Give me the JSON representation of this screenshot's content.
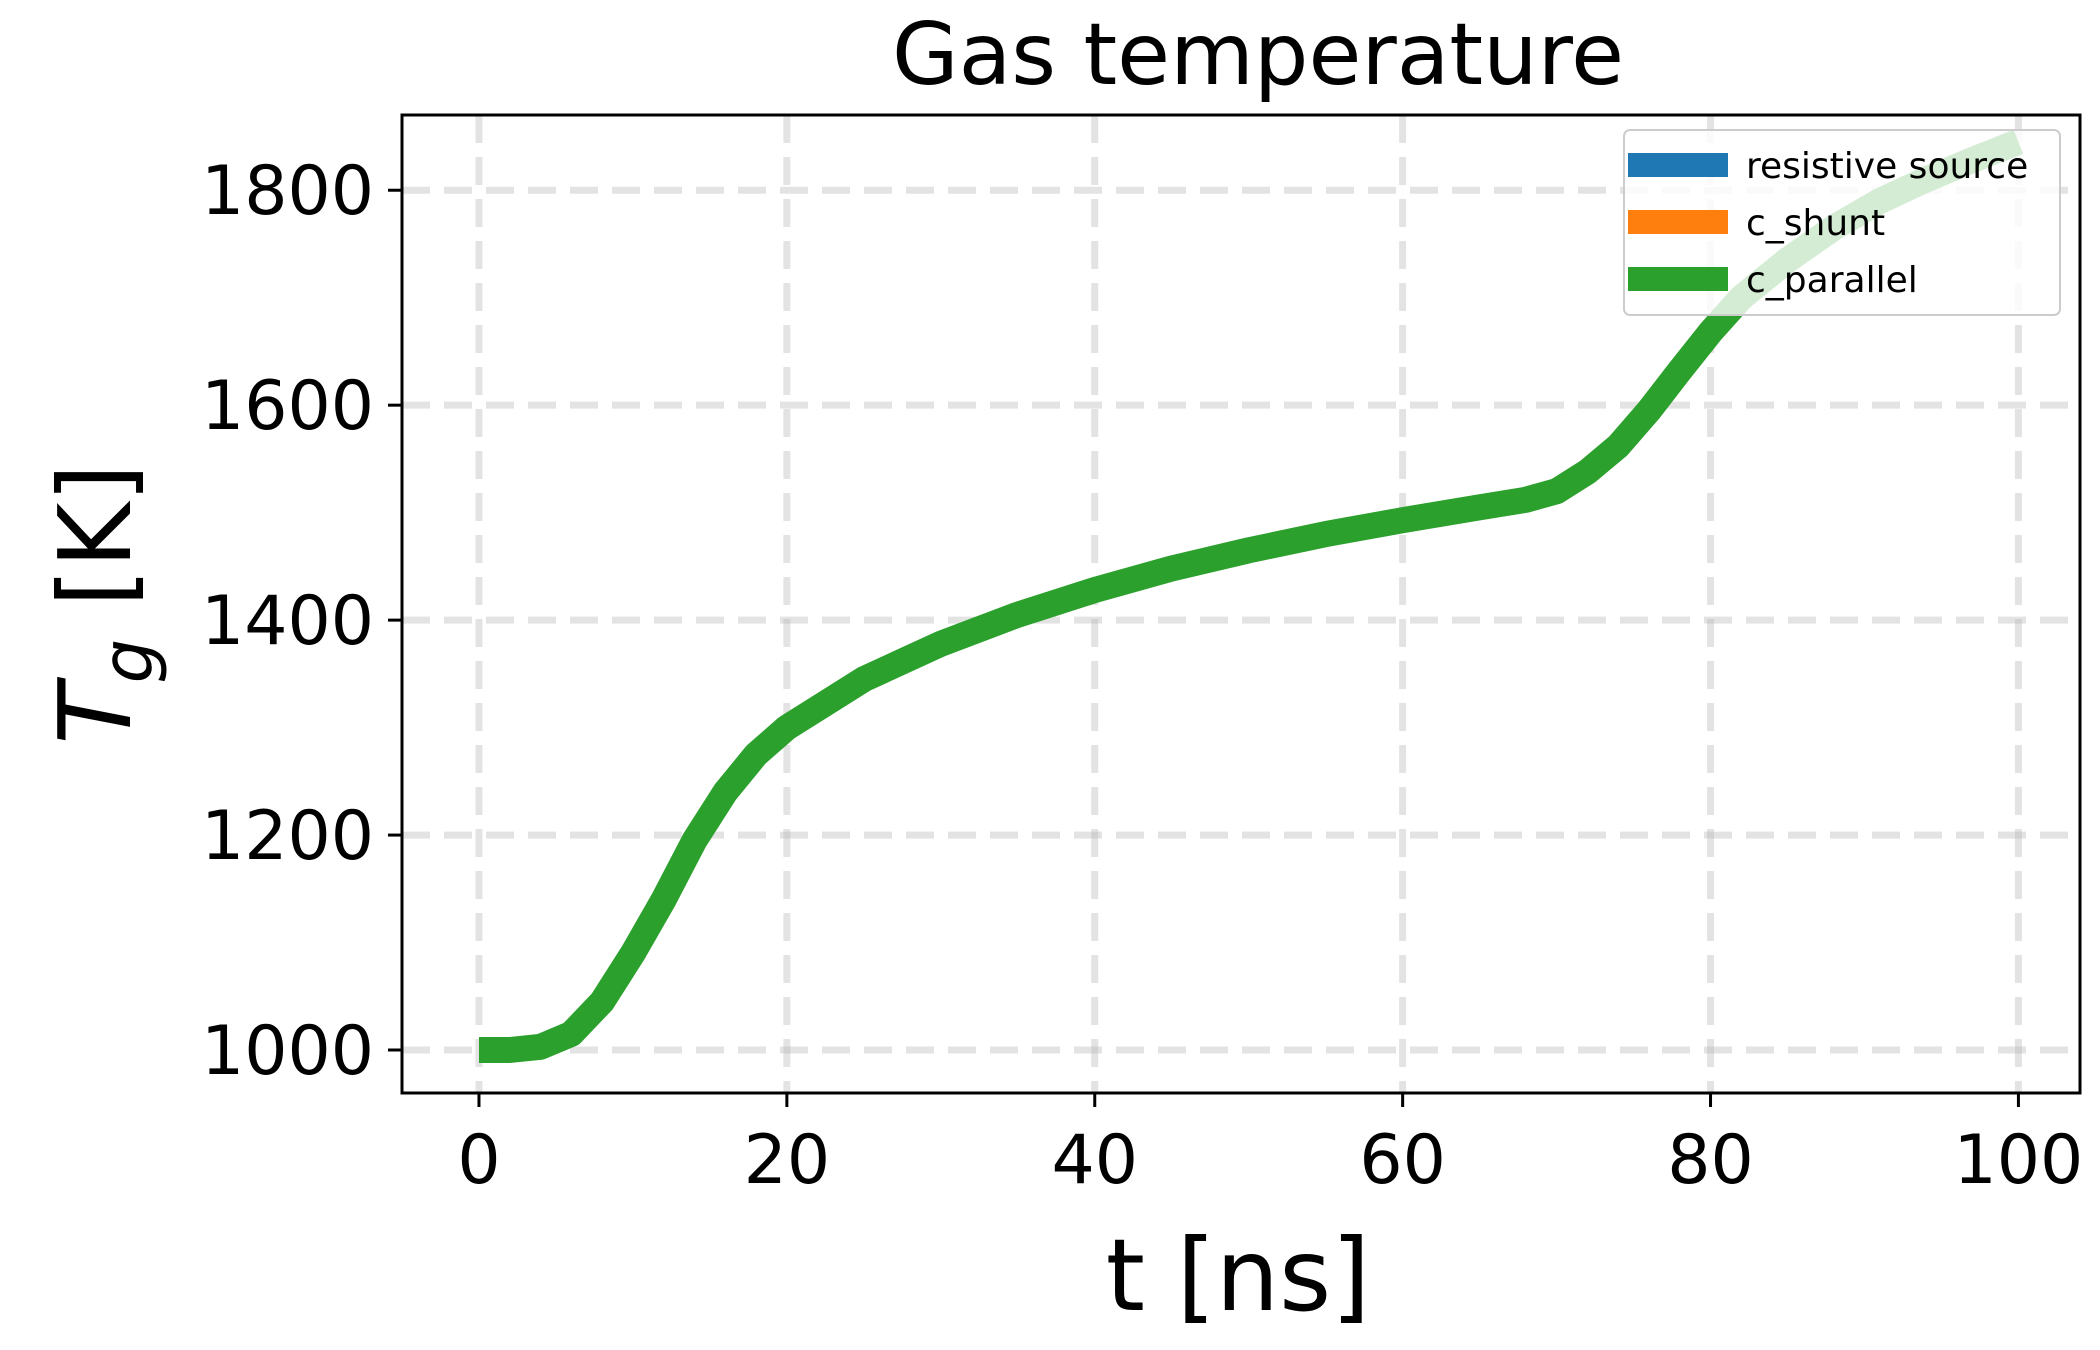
{
  "chart_data": {
    "type": "line",
    "title": "Gas temperature",
    "xlabel": "t [ns]",
    "ylabel": {
      "symbol": "T",
      "subscript": "g",
      "unit": "[K]"
    },
    "xlim": [
      -5,
      104
    ],
    "ylim": [
      960,
      1870
    ],
    "xticks": [
      0,
      20,
      40,
      60,
      80,
      100
    ],
    "yticks": [
      1000,
      1200,
      1400,
      1600,
      1800
    ],
    "grid": true,
    "legend_position": "top-right",
    "series": [
      {
        "name": "resistive source",
        "color": "#1f77b4",
        "x": [],
        "y": []
      },
      {
        "name": "c_shunt",
        "color": "#ff7f0e",
        "x": [],
        "y": []
      },
      {
        "name": "c_parallel",
        "color": "#2ca02c",
        "x": [
          0,
          2,
          4,
          6,
          8,
          10,
          12,
          14,
          16,
          18,
          20,
          25,
          30,
          35,
          40,
          45,
          50,
          55,
          60,
          65,
          68,
          70,
          72,
          74,
          76,
          78,
          80,
          82,
          85,
          88,
          91,
          94,
          97,
          100
        ],
        "y": [
          1000,
          1000,
          1003,
          1015,
          1045,
          1090,
          1140,
          1195,
          1240,
          1275,
          1300,
          1345,
          1378,
          1405,
          1428,
          1448,
          1465,
          1480,
          1493,
          1505,
          1512,
          1520,
          1538,
          1562,
          1595,
          1632,
          1668,
          1700,
          1735,
          1765,
          1790,
          1810,
          1828,
          1845
        ]
      }
    ]
  }
}
